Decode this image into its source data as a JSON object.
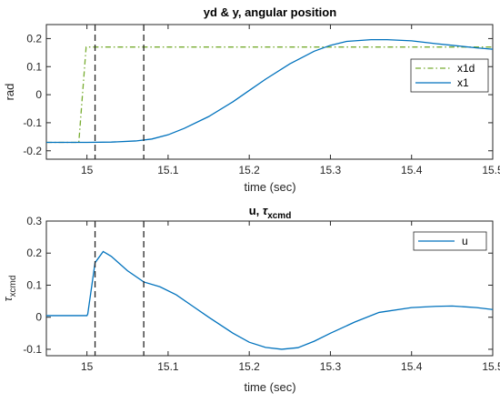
{
  "chart_data": [
    {
      "type": "line",
      "title": "yd & y, angular position",
      "xlabel": "time (sec)",
      "ylabel": "rad",
      "xlim": [
        14.95,
        15.5
      ],
      "ylim": [
        -0.23,
        0.25
      ],
      "xticks": [
        15,
        15.1,
        15.2,
        15.3,
        15.4,
        15.5
      ],
      "xtick_labels": [
        "15",
        "15.1",
        "15.2",
        "15.3",
        "15.4",
        "15.5"
      ],
      "yticks": [
        -0.2,
        -0.1,
        0,
        0.1,
        0.2
      ],
      "ytick_labels": [
        "-0.2",
        "-0.1",
        "0",
        "0.1",
        "0.2"
      ],
      "grid": false,
      "legend_position": "right",
      "vlines": [
        15.01,
        15.07
      ],
      "series": [
        {
          "name": "x1d",
          "color": "#77AC30",
          "dash": "dashdot",
          "x": [
            14.95,
            14.99,
            14.999,
            15.5
          ],
          "y": [
            -0.17,
            -0.17,
            0.17,
            0.17
          ]
        },
        {
          "name": "x1",
          "color": "#0072BD",
          "dash": "solid",
          "x": [
            14.95,
            15.0,
            15.03,
            15.06,
            15.08,
            15.1,
            15.12,
            15.15,
            15.18,
            15.2,
            15.22,
            15.25,
            15.28,
            15.3,
            15.32,
            15.35,
            15.37,
            15.4,
            15.43,
            15.45,
            15.48,
            15.5
          ],
          "y": [
            -0.17,
            -0.17,
            -0.169,
            -0.165,
            -0.158,
            -0.143,
            -0.12,
            -0.078,
            -0.025,
            0.015,
            0.055,
            0.11,
            0.155,
            0.176,
            0.19,
            0.196,
            0.196,
            0.192,
            0.182,
            0.176,
            0.167,
            0.162
          ]
        }
      ]
    },
    {
      "type": "line",
      "title": "u, τ_xcmd",
      "title_main": "u, ",
      "title_symbol": "τ",
      "title_sub": "xcmd",
      "xlabel": "time (sec)",
      "ylabel": "τ_xcmd",
      "ylabel_symbol": "τ",
      "ylabel_sub": "xcmd",
      "xlim": [
        14.95,
        15.5
      ],
      "ylim": [
        -0.12,
        0.3
      ],
      "xticks": [
        15,
        15.1,
        15.2,
        15.3,
        15.4,
        15.5
      ],
      "xtick_labels": [
        "15",
        "15.1",
        "15.2",
        "15.3",
        "15.4",
        "15.5"
      ],
      "yticks": [
        -0.1,
        0,
        0.1,
        0.2,
        0.3
      ],
      "ytick_labels": [
        "-0.1",
        "0",
        "0.1",
        "0.2",
        "0.3"
      ],
      "grid": false,
      "legend_position": "top-right",
      "vlines": [
        15.01,
        15.07
      ],
      "series": [
        {
          "name": "u",
          "color": "#0072BD",
          "dash": "solid",
          "x": [
            14.95,
            15.0,
            15.001,
            15.01,
            15.02,
            15.03,
            15.05,
            15.07,
            15.09,
            15.11,
            15.13,
            15.15,
            15.18,
            15.2,
            15.22,
            15.24,
            15.26,
            15.28,
            15.3,
            15.33,
            15.36,
            15.4,
            15.43,
            15.45,
            15.48,
            15.5
          ],
          "y": [
            0.005,
            0.005,
            0.01,
            0.17,
            0.205,
            0.19,
            0.145,
            0.11,
            0.095,
            0.07,
            0.035,
            0.0,
            -0.05,
            -0.078,
            -0.094,
            -0.1,
            -0.095,
            -0.075,
            -0.05,
            -0.015,
            0.015,
            0.03,
            0.034,
            0.035,
            0.03,
            0.024
          ]
        }
      ]
    }
  ]
}
